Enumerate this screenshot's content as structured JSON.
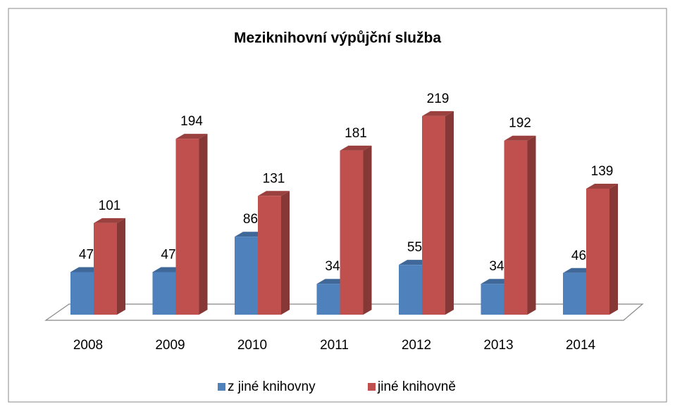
{
  "chart_data": {
    "type": "bar3d",
    "title": "Meziknihovní výpůjční služba",
    "categories": [
      "2008",
      "2009",
      "2010",
      "2011",
      "2012",
      "2013",
      "2014"
    ],
    "series": [
      {
        "name": "z jiné knihovny",
        "color": "#4f81bd",
        "values": [
          47,
          47,
          86,
          34,
          55,
          34,
          46
        ]
      },
      {
        "name": "jiné knihovně",
        "color": "#c0504d",
        "values": [
          101,
          194,
          131,
          181,
          219,
          192,
          139
        ]
      }
    ],
    "ylim": [
      0,
      250
    ],
    "legend": "bottom"
  }
}
